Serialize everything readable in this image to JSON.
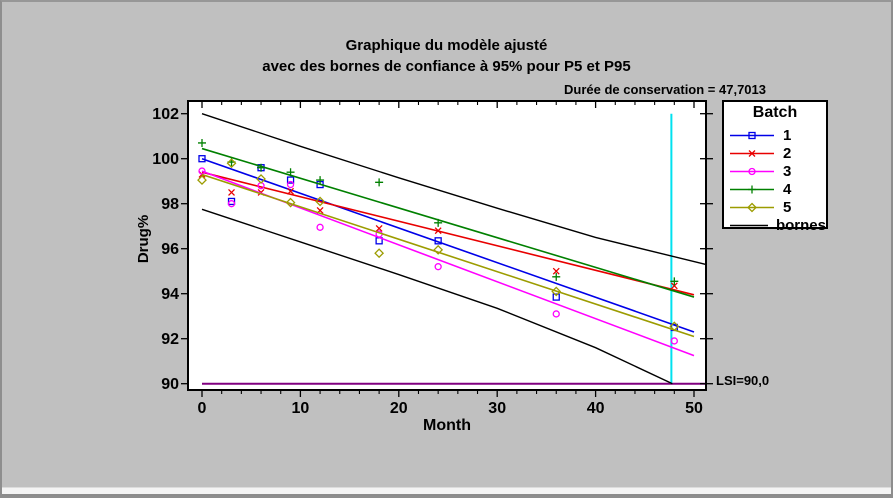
{
  "title": {
    "line1": "Graphique du modèle ajusté",
    "line2": "avec des bornes de confiance à 95% pour P5 et P95"
  },
  "annotations": {
    "shelf_life_label": "Durée de conservation = 47,7013",
    "lsi_label": "LSI=90,0"
  },
  "legend": {
    "title": "Batch",
    "items": [
      {
        "label": "1",
        "color": "#0000E8",
        "marker": "square"
      },
      {
        "label": "2",
        "color": "#E80000",
        "marker": "x"
      },
      {
        "label": "3",
        "color": "#FF00FF",
        "marker": "circle"
      },
      {
        "label": "4",
        "color": "#008000",
        "marker": "plus"
      },
      {
        "label": "5",
        "color": "#9C9C00",
        "marker": "diamond"
      },
      {
        "label": "bornes",
        "color": "#000000",
        "marker": "none"
      }
    ]
  },
  "chart_data": {
    "type": "scatter",
    "title": "Graphique du modèle ajusté avec des bornes de confiance à 95% pour P5 et P95",
    "xlabel": "Month",
    "ylabel": "Drug%",
    "xlim": [
      0,
      50
    ],
    "ylim": [
      90,
      102
    ],
    "xticks": [
      0,
      10,
      20,
      30,
      40,
      50
    ],
    "x_minor_tick_step": 2,
    "yticks": [
      90,
      92,
      94,
      96,
      98,
      100,
      102
    ],
    "grid": false,
    "legend_position": "outside-right",
    "months": [
      0,
      3,
      6,
      9,
      12,
      18,
      24,
      36,
      48
    ],
    "series": [
      {
        "name": "1",
        "color": "#0000E8",
        "marker": "square",
        "values": [
          100.0,
          98.1,
          99.6,
          99.05,
          98.85,
          96.35,
          96.35,
          93.85,
          92.5
        ],
        "fit_line_y": [
          100.0,
          92.3
        ]
      },
      {
        "name": "2",
        "color": "#E80000",
        "marker": "x",
        "values": [
          99.3,
          98.5,
          98.5,
          98.55,
          97.7,
          96.9,
          96.8,
          95.0,
          94.35
        ],
        "fit_line_y": [
          99.4,
          93.95
        ]
      },
      {
        "name": "3",
        "color": "#FF00FF",
        "marker": "circle",
        "values": [
          99.45,
          98.0,
          98.8,
          98.85,
          96.95,
          96.65,
          95.2,
          93.1,
          91.9
        ],
        "fit_line_y": [
          99.45,
          91.25
        ]
      },
      {
        "name": "4",
        "color": "#008000",
        "marker": "plus",
        "values": [
          100.7,
          99.85,
          99.6,
          99.4,
          99.05,
          98.95,
          97.15,
          94.75,
          94.55
        ],
        "fit_line_y": [
          100.45,
          93.85
        ]
      },
      {
        "name": "5",
        "color": "#9C9C00",
        "marker": "diamond",
        "values": [
          99.05,
          99.8,
          99.1,
          98.05,
          98.1,
          95.8,
          95.95,
          94.1,
          92.55
        ],
        "fit_line_y": [
          99.3,
          92.1
        ]
      }
    ],
    "fit_line_x": [
      0,
      50
    ],
    "bounds": {
      "name": "bornes",
      "color": "#000000",
      "upper": [
        [
          0,
          102.0
        ],
        [
          10,
          100.55
        ],
        [
          20,
          99.15
        ],
        [
          30,
          97.8
        ],
        [
          40,
          96.5
        ],
        [
          51.2,
          95.3
        ]
      ],
      "lower": [
        [
          0,
          97.75
        ],
        [
          10,
          96.3
        ],
        [
          20,
          94.85
        ],
        [
          30,
          93.35
        ],
        [
          40,
          91.6
        ],
        [
          47.8,
          90.0
        ]
      ]
    },
    "shelf_life_line": {
      "x": 47.7013,
      "color": "#00E1EF",
      "y_range": [
        90,
        102
      ]
    },
    "lsi_line": {
      "y": 90.0,
      "color": "#800080"
    }
  }
}
